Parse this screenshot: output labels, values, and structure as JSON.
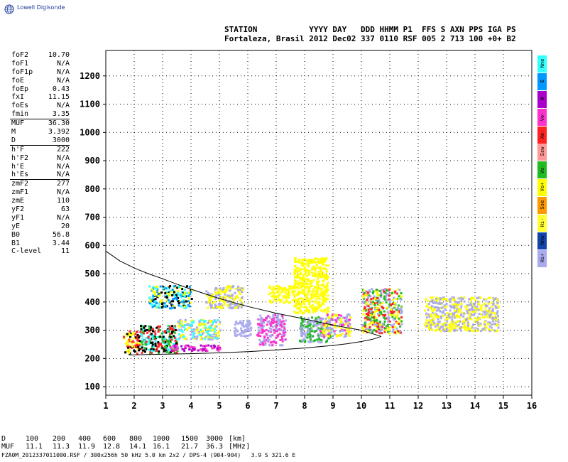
{
  "logo": {
    "text": "Lowell Digisonde",
    "icon": "globe-icon"
  },
  "header": {
    "labels_line": "STATION           YYYY DAY   DDD HHMM P1  FFS S AXN PPS IGA PS",
    "values_line": "Fortaleza, Brasil 2012 Dec02 337 0110 RSF 005 2 713 100 +0+ B2"
  },
  "parameters": {
    "group1": [
      {
        "name": "foF2",
        "value": "10.70"
      },
      {
        "name": "foF1",
        "value": "N/A"
      },
      {
        "name": "foF1p",
        "value": "N/A"
      },
      {
        "name": "foE",
        "value": "N/A"
      },
      {
        "name": "foEp",
        "value": "0.43"
      },
      {
        "name": "fxI",
        "value": "11.15"
      },
      {
        "name": "foEs",
        "value": "N/A"
      },
      {
        "name": "fmin",
        "value": "3.35"
      }
    ],
    "group2": [
      {
        "name": "MUF",
        "value": "36.30"
      },
      {
        "name": "M",
        "value": "3.392"
      },
      {
        "name": "D",
        "value": "3000"
      }
    ],
    "group3": [
      {
        "name": "h'F",
        "value": "222"
      },
      {
        "name": "h'F2",
        "value": "N/A"
      },
      {
        "name": "h'E",
        "value": "N/A"
      },
      {
        "name": "h'Es",
        "value": "N/A"
      }
    ],
    "group4": [
      {
        "name": "zmF2",
        "value": "277"
      },
      {
        "name": "zmF1",
        "value": "N/A"
      },
      {
        "name": "zmE",
        "value": "110"
      },
      {
        "name": "yF2",
        "value": "63"
      },
      {
        "name": "yF1",
        "value": "N/A"
      },
      {
        "name": "yE",
        "value": "20"
      },
      {
        "name": "B0",
        "value": "56.8"
      },
      {
        "name": "B1",
        "value": "3.44"
      },
      {
        "name": "C-level",
        "value": "11"
      }
    ]
  },
  "legend": [
    {
      "label": "Nne",
      "color": "#33ffff"
    },
    {
      "label": "E",
      "color": "#0099ff"
    },
    {
      "label": "W",
      "color": "#aa00cc"
    },
    {
      "label": "Vo-",
      "color": "#ff33cc"
    },
    {
      "label": "Xo-",
      "color": "#ff2222"
    },
    {
      "label": "Ssw",
      "color": "#ff9999"
    },
    {
      "label": "Vo-",
      "color": "#22bb22"
    },
    {
      "label": "Vo+",
      "color": "#ffff00"
    },
    {
      "label": "Sse",
      "color": "#ff9900"
    },
    {
      "label": "Hi-",
      "color": "#ffff33"
    },
    {
      "label": "Nnw",
      "color": "#1144aa"
    },
    {
      "label": "Hi+",
      "color": "#aaaaee"
    }
  ],
  "footer": {
    "d_label": "D",
    "muf_label": "MUF",
    "d_values": [
      "100",
      "200",
      "400",
      "600",
      "800",
      "1000",
      "1500",
      "3000"
    ],
    "d_unit": "[km]",
    "muf_values": [
      "11.1",
      "11.3",
      "11.9",
      "12.8",
      "14.1",
      "16.1",
      "21.7",
      "36.3"
    ],
    "muf_unit": "[MHz]",
    "file_line": "FZA0M_2012337011000.RSF / 300x256h 50 kHz 5.0 km 2x2 / DPS-4 (904-904)   3.9 S 321.6 E"
  },
  "chart_data": {
    "type": "scatter",
    "subtype": "ionogram",
    "x_ticks": [
      1,
      2,
      3,
      4,
      5,
      6,
      7,
      8,
      9,
      10,
      11,
      12,
      13,
      14,
      15,
      16
    ],
    "y_ticks": [
      100,
      200,
      300,
      400,
      500,
      600,
      700,
      800,
      900,
      1000,
      1100,
      1200
    ],
    "xlim": [
      1,
      16
    ],
    "ylim": [
      70,
      1290
    ],
    "xlabel": "",
    "ylabel": "",
    "grid": "dotted",
    "profile_curve": {
      "upper_x": [
        1,
        1.5,
        2,
        2.5,
        3,
        3.5,
        4,
        5,
        6,
        7,
        8,
        9,
        10,
        10.7
      ],
      "upper_y": [
        580,
        545,
        520,
        500,
        482,
        463,
        445,
        412,
        384,
        360,
        340,
        318,
        300,
        278
      ],
      "lower_x": [
        1.8,
        2,
        2.5,
        3,
        4,
        5,
        6,
        7,
        8,
        9,
        9.5,
        10,
        10.4,
        10.7
      ],
      "lower_y": [
        213,
        213,
        214,
        215,
        217,
        220,
        224,
        230,
        237,
        246,
        252,
        260,
        268,
        278
      ]
    },
    "echo_clusters": [
      {
        "x": [
          1.6,
          2.2
        ],
        "y": [
          220,
          300
        ],
        "colors": [
          "#000000",
          "#ff2222",
          "#ffff00"
        ]
      },
      {
        "x": [
          2.2,
          3.5
        ],
        "y": [
          220,
          320
        ],
        "colors": [
          "#000000",
          "#33ffff",
          "#ff2222",
          "#22bb22"
        ]
      },
      {
        "x": [
          2.5,
          4.0
        ],
        "y": [
          380,
          460
        ],
        "colors": [
          "#33ffff",
          "#0099ff",
          "#000000",
          "#ffff00"
        ]
      },
      {
        "x": [
          3.2,
          5.0
        ],
        "y": [
          230,
          250
        ],
        "colors": [
          "#ff33cc",
          "#aa00cc"
        ]
      },
      {
        "x": [
          3.5,
          5.0
        ],
        "y": [
          270,
          340
        ],
        "colors": [
          "#aaaaee",
          "#ffff00",
          "#33ffff"
        ]
      },
      {
        "x": [
          4.5,
          5.8
        ],
        "y": [
          380,
          460
        ],
        "colors": [
          "#ffff00",
          "#aaaaee"
        ]
      },
      {
        "x": [
          5.5,
          6.1
        ],
        "y": [
          280,
          340
        ],
        "colors": [
          "#aaaaee"
        ]
      },
      {
        "x": [
          6.3,
          7.3
        ],
        "y": [
          250,
          360
        ],
        "colors": [
          "#aaaaee",
          "#ff33cc"
        ]
      },
      {
        "x": [
          6.7,
          7.6
        ],
        "y": [
          400,
          460
        ],
        "colors": [
          "#ffff00"
        ]
      },
      {
        "x": [
          7.6,
          8.8
        ],
        "y": [
          360,
          560
        ],
        "colors": [
          "#ffff00"
        ]
      },
      {
        "x": [
          7.8,
          8.9
        ],
        "y": [
          260,
          350
        ],
        "colors": [
          "#aaaaee",
          "#22bb22"
        ]
      },
      {
        "x": [
          8.5,
          9.6
        ],
        "y": [
          280,
          360
        ],
        "colors": [
          "#aaaaee",
          "#ff33cc",
          "#ffff00"
        ]
      },
      {
        "x": [
          10.0,
          11.4
        ],
        "y": [
          290,
          450
        ],
        "colors": [
          "#ff2222",
          "#aaaaee",
          "#ffff00",
          "#22bb22"
        ]
      },
      {
        "x": [
          12.2,
          13.2
        ],
        "y": [
          300,
          420
        ],
        "colors": [
          "#aaaaee",
          "#ffff00"
        ]
      },
      {
        "x": [
          13.2,
          14.8
        ],
        "y": [
          300,
          420
        ],
        "colors": [
          "#aaaaee",
          "#ffff00"
        ]
      }
    ]
  }
}
